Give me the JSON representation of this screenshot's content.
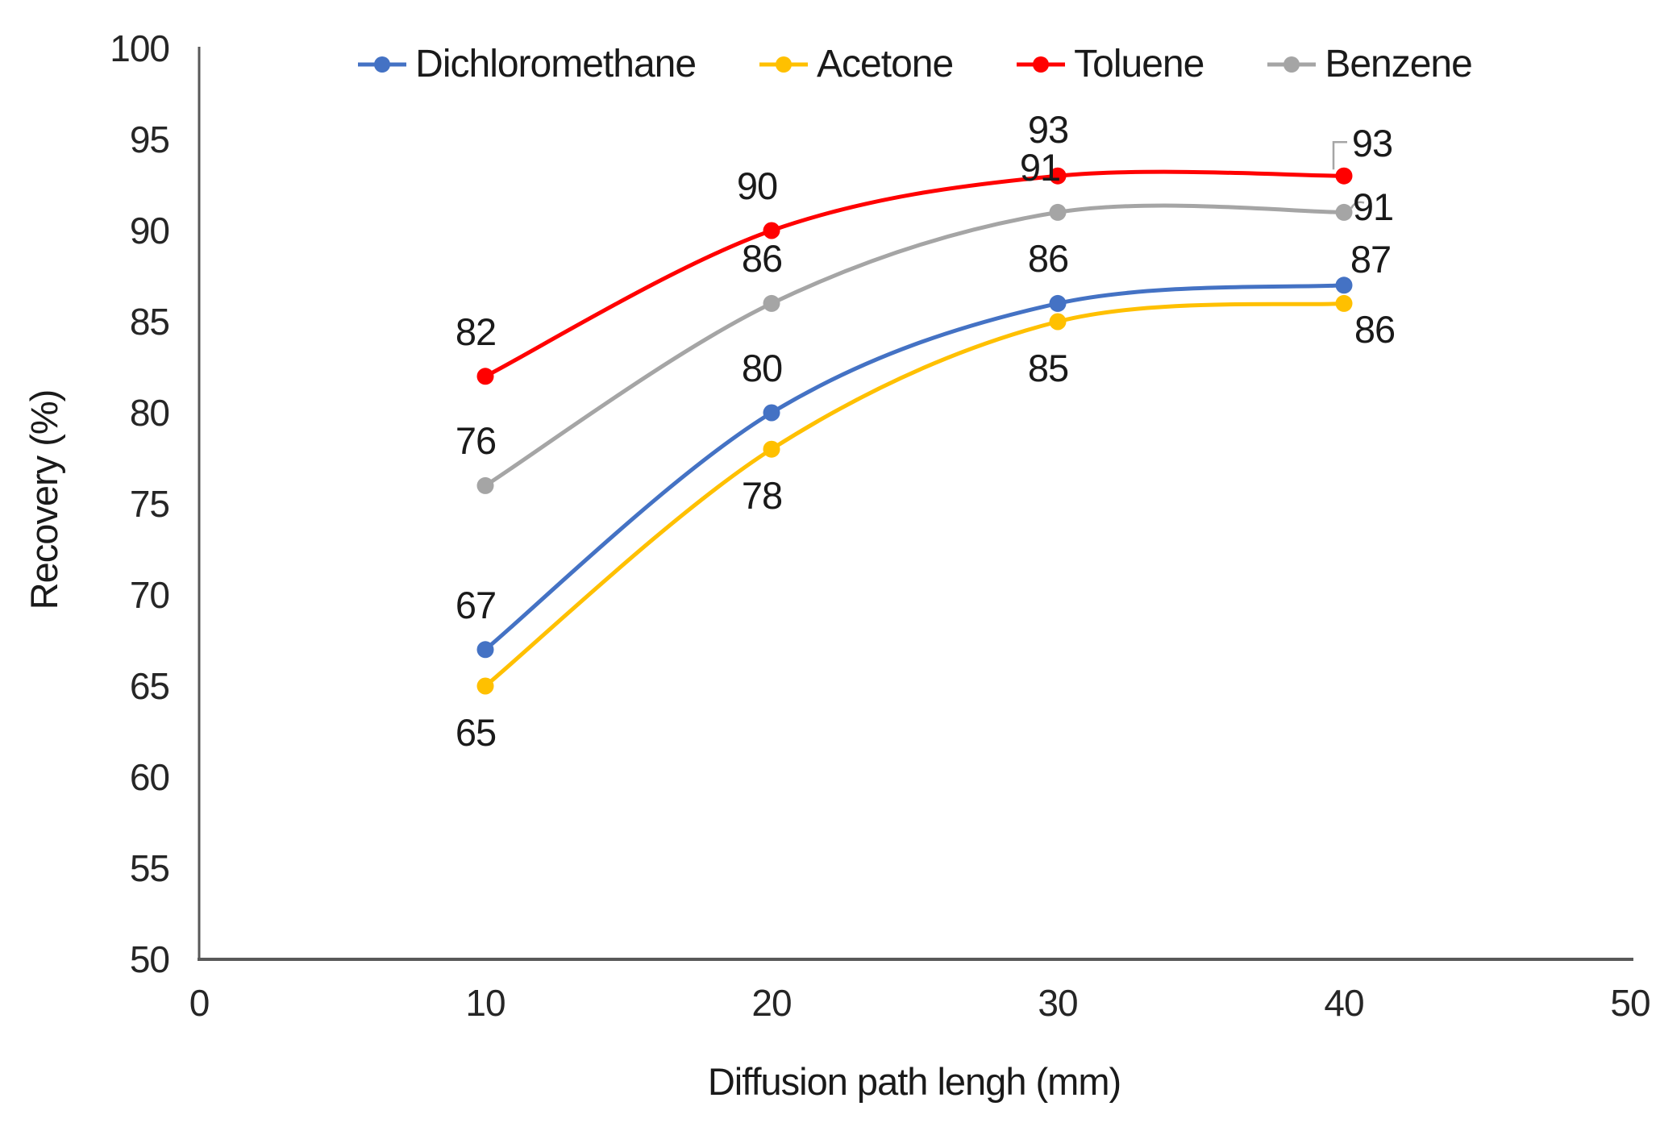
{
  "chart_data": {
    "type": "line",
    "title": "",
    "xlabel": "Diffusion path lengh (mm)",
    "ylabel": "Recovery (%)",
    "x": [
      10,
      20,
      30,
      40
    ],
    "series": [
      {
        "name": "Dichloromethane",
        "color": "#4472C4",
        "values": [
          67,
          80,
          86,
          87
        ]
      },
      {
        "name": "Acetone",
        "color": "#FFC000",
        "values": [
          65,
          78,
          85,
          86
        ]
      },
      {
        "name": "Toluene",
        "color": "#FF0000",
        "values": [
          82,
          90,
          93,
          93
        ]
      },
      {
        "name": "Benzene",
        "color": "#A5A5A5",
        "values": [
          76,
          86,
          91,
          91
        ]
      }
    ],
    "xticks": [
      0,
      10,
      20,
      30,
      40,
      50
    ],
    "yticks": [
      50,
      55,
      60,
      65,
      70,
      75,
      80,
      85,
      90,
      95,
      100
    ],
    "xlim": [
      0,
      50
    ],
    "ylim": [
      50,
      100
    ],
    "grid": false,
    "smooth": true,
    "markers": true,
    "data_labels": true,
    "legend_position": "top",
    "colors": {
      "axis": "#595959",
      "text": "#262626",
      "leader": "#A6A6A6",
      "background": "#FFFFFF"
    }
  }
}
